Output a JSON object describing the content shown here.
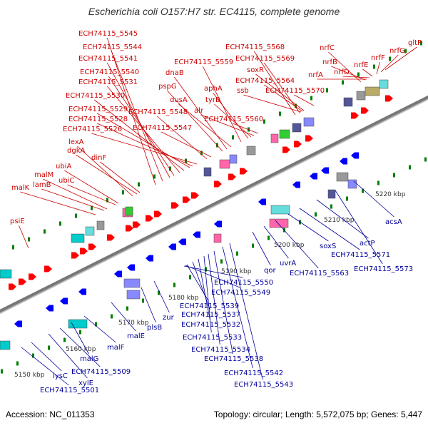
{
  "title": "Escherichia coli O157:H7 str. EC4115, complete genome",
  "footer": {
    "accession": "Accession: NC_011353",
    "summary": "Topology: circular; Length: 5,572,075 bp; Genes: 5,447"
  },
  "colors": {
    "forward_label": "#cc0000",
    "reverse_label": "#00009a",
    "forward_arrow": "#ff0000",
    "reverse_arrow": "#0000ff",
    "backbone": "#777777",
    "tick": "#008000"
  },
  "scale_labels": [
    "5150 kbp",
    "5160 kbp",
    "5170 kbp",
    "5180 kbp",
    "5190 kbp",
    "5200 kbp",
    "5210 kbp",
    "5220 kbp"
  ],
  "forward_labels": [
    "ECH74115_5545",
    "ECH74115_5544",
    "ECH74115_5541",
    "ECH74115_5540",
    "ECH74115_5531",
    "ECH74115_5530",
    "ECH74115_5529",
    "ECH74115_5528",
    "ECH74115_5526",
    "ECH74115_5548",
    "ECH74115_5547",
    "lexA",
    "dgkA",
    "dinF",
    "ubiA",
    "malM",
    "ubiC",
    "malK",
    "lamB",
    "psiE",
    "ECH74115_5559",
    "dnaB",
    "pspG",
    "dusA",
    "aphA",
    "tyrB",
    "alr",
    "ECH74115_5560",
    "ECH74115_5568",
    "ECH74115_5569",
    "soxR",
    "ECH74115_5564",
    "ssb",
    "ECH74115_5570",
    "nrfC",
    "nrfB",
    "nrfA",
    "nrfD",
    "nrfE",
    "nrfF",
    "nrfG",
    "gltP"
  ],
  "reverse_labels": [
    "ECH74115_5501",
    "lysC",
    "xylE",
    "ECH74115_5509",
    "malG",
    "malF",
    "malE",
    "plsB",
    "zur",
    "ECH74115_5550",
    "ECH74115_5549",
    "ECH74115_5539",
    "ECH74115_5537",
    "ECH74115_5532",
    "ECH74115_5533",
    "ECH74115_5534",
    "ECH74115_5538",
    "ECH74115_5542",
    "ECH74115_5543",
    "qor",
    "uvrA",
    "ECH74115_5563",
    "soxS",
    "ECH74115_5571",
    "actP",
    "ECH74115_5573",
    "acsA"
  ]
}
